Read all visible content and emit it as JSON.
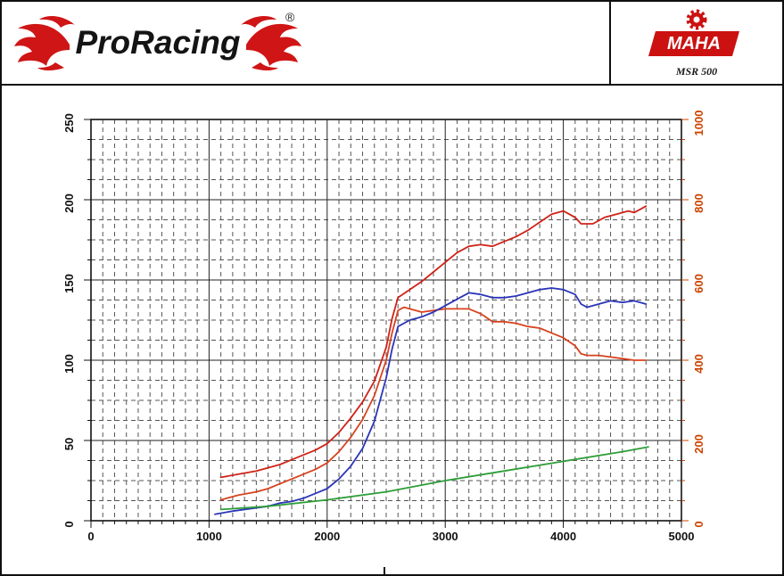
{
  "header": {
    "brand": "ProRacing",
    "registered_mark": "®",
    "device_logo": "MAHA",
    "device_model": "MSR 500",
    "brand_color": "#cf1515",
    "device_color": "#cc1111"
  },
  "chart_data": {
    "type": "line",
    "title": "",
    "xlabel": "",
    "ylabel_left": "",
    "ylabel_right": "",
    "grid": "dashed-minor-solid-major",
    "legend_position": "none",
    "x_axis": {
      "min": 0,
      "max": 5000,
      "ticks": [
        0,
        1000,
        2000,
        3000,
        4000,
        5000
      ],
      "minor_step": 100
    },
    "y_left": {
      "min": 0,
      "max": 250,
      "ticks": [
        0,
        50,
        100,
        150,
        200,
        250
      ],
      "minor_step": 12.5,
      "color": "#111111"
    },
    "y_right": {
      "min": 0,
      "max": 1000,
      "ticks": [
        0,
        200,
        400,
        600,
        800,
        1000
      ],
      "minor_step": 50,
      "color": "#cc4400"
    },
    "series": [
      {
        "name": "power-upper-red",
        "color": "#cf2318",
        "axis": "left",
        "points": [
          [
            1100,
            27
          ],
          [
            1250,
            29
          ],
          [
            1400,
            31
          ],
          [
            1500,
            33
          ],
          [
            1600,
            35
          ],
          [
            1700,
            38
          ],
          [
            1800,
            41
          ],
          [
            1900,
            44
          ],
          [
            2000,
            48
          ],
          [
            2100,
            55
          ],
          [
            2200,
            64
          ],
          [
            2300,
            74
          ],
          [
            2400,
            87
          ],
          [
            2500,
            108
          ],
          [
            2550,
            126
          ],
          [
            2600,
            139
          ],
          [
            2700,
            144
          ],
          [
            2800,
            149
          ],
          [
            2900,
            155
          ],
          [
            3000,
            161
          ],
          [
            3100,
            167
          ],
          [
            3200,
            171
          ],
          [
            3300,
            172
          ],
          [
            3400,
            171
          ],
          [
            3500,
            174
          ],
          [
            3600,
            177
          ],
          [
            3700,
            181
          ],
          [
            3800,
            186
          ],
          [
            3900,
            191
          ],
          [
            4000,
            193
          ],
          [
            4100,
            189
          ],
          [
            4150,
            185
          ],
          [
            4250,
            185
          ],
          [
            4350,
            189
          ],
          [
            4450,
            191
          ],
          [
            4550,
            193
          ],
          [
            4600,
            192
          ],
          [
            4650,
            194
          ],
          [
            4700,
            196
          ]
        ]
      },
      {
        "name": "torque-lower-red",
        "color": "#d8431f",
        "axis": "left",
        "points": [
          [
            1100,
            13
          ],
          [
            1250,
            16
          ],
          [
            1400,
            18
          ],
          [
            1500,
            20
          ],
          [
            1600,
            23
          ],
          [
            1700,
            26
          ],
          [
            1800,
            29
          ],
          [
            1900,
            32
          ],
          [
            2000,
            36
          ],
          [
            2100,
            43
          ],
          [
            2200,
            52
          ],
          [
            2300,
            63
          ],
          [
            2400,
            78
          ],
          [
            2500,
            100
          ],
          [
            2550,
            117
          ],
          [
            2600,
            131
          ],
          [
            2650,
            133
          ],
          [
            2700,
            132
          ],
          [
            2800,
            130
          ],
          [
            2900,
            131
          ],
          [
            3000,
            132
          ],
          [
            3100,
            132
          ],
          [
            3200,
            132
          ],
          [
            3300,
            129
          ],
          [
            3400,
            124
          ],
          [
            3500,
            124
          ],
          [
            3600,
            123
          ],
          [
            3700,
            121
          ],
          [
            3800,
            120
          ],
          [
            3900,
            117
          ],
          [
            4000,
            114
          ],
          [
            4100,
            109
          ],
          [
            4150,
            104
          ],
          [
            4200,
            103
          ],
          [
            4300,
            103
          ],
          [
            4400,
            102
          ],
          [
            4500,
            101
          ],
          [
            4600,
            100
          ],
          [
            4700,
            100
          ]
        ]
      },
      {
        "name": "blue-curve",
        "color": "#2b35b8",
        "axis": "left",
        "points": [
          [
            1050,
            4
          ],
          [
            1200,
            6
          ],
          [
            1400,
            8
          ],
          [
            1500,
            9
          ],
          [
            1600,
            11
          ],
          [
            1700,
            12
          ],
          [
            1800,
            14
          ],
          [
            1900,
            17
          ],
          [
            2000,
            20
          ],
          [
            2100,
            26
          ],
          [
            2200,
            34
          ],
          [
            2300,
            45
          ],
          [
            2400,
            62
          ],
          [
            2500,
            89
          ],
          [
            2550,
            107
          ],
          [
            2600,
            121
          ],
          [
            2700,
            125
          ],
          [
            2800,
            127
          ],
          [
            2900,
            130
          ],
          [
            3000,
            134
          ],
          [
            3100,
            138
          ],
          [
            3200,
            142
          ],
          [
            3300,
            141
          ],
          [
            3400,
            139
          ],
          [
            3500,
            139
          ],
          [
            3600,
            140
          ],
          [
            3700,
            142
          ],
          [
            3800,
            144
          ],
          [
            3900,
            145
          ],
          [
            4000,
            144
          ],
          [
            4100,
            141
          ],
          [
            4150,
            135
          ],
          [
            4200,
            133
          ],
          [
            4300,
            135
          ],
          [
            4400,
            137
          ],
          [
            4500,
            136
          ],
          [
            4600,
            137
          ],
          [
            4700,
            135
          ]
        ]
      },
      {
        "name": "green-line",
        "color": "#2f9e38",
        "axis": "left",
        "points": [
          [
            1100,
            7
          ],
          [
            1500,
            9
          ],
          [
            2000,
            13
          ],
          [
            2500,
            18
          ],
          [
            3000,
            25
          ],
          [
            3500,
            31
          ],
          [
            4000,
            37
          ],
          [
            4500,
            43
          ],
          [
            4720,
            46
          ]
        ]
      }
    ]
  }
}
